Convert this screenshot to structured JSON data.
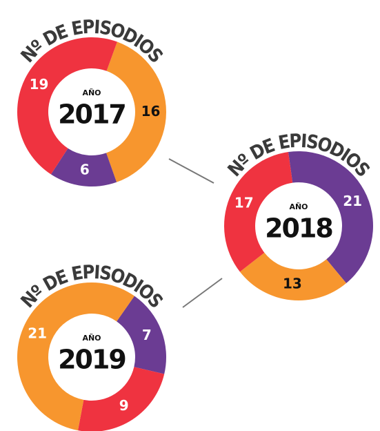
{
  "chart_data": [
    {
      "type": "pie",
      "title": "Nº DE EPISODIOS",
      "label": "AÑO",
      "year": "2017",
      "categories": [
        null,
        null,
        null
      ],
      "values": [
        16,
        6,
        19
      ],
      "colors": [
        "#f7962e",
        "#6b3c93",
        "#ef3340"
      ],
      "label_colors": [
        "#111111",
        "#ffffff",
        "#ffffff"
      ]
    },
    {
      "type": "pie",
      "title": "Nº DE EPISODIOS",
      "label": "AÑO",
      "year": "2018",
      "categories": [
        null,
        null,
        null
      ],
      "values": [
        21,
        13,
        17
      ],
      "colors": [
        "#6b3c93",
        "#f7962e",
        "#ef3340"
      ],
      "label_colors": [
        "#ffffff",
        "#111111",
        "#ffffff"
      ]
    },
    {
      "type": "pie",
      "title": "Nº DE EPISODIOS",
      "label": "AÑO",
      "year": "2019",
      "categories": [
        null,
        null,
        null
      ],
      "values": [
        7,
        9,
        21
      ],
      "colors": [
        "#6b3c93",
        "#ef3340",
        "#f7962e"
      ],
      "label_colors": [
        "#ffffff",
        "#ffffff",
        "#ffffff"
      ]
    }
  ]
}
